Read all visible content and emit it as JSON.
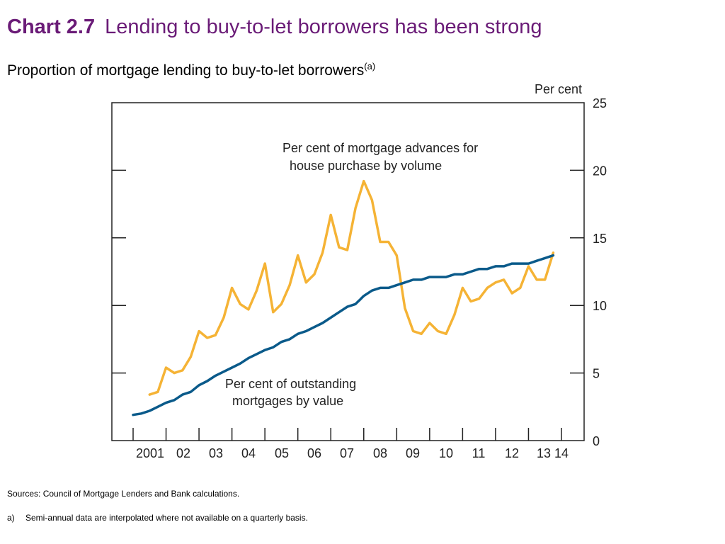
{
  "header": {
    "chart_number": "Chart 2.7",
    "title": "Lending to buy-to-let borrowers has been strong",
    "subtitle": "Proportion of mortgage lending to buy-to-let borrowers",
    "subtitle_note": "(a)"
  },
  "chart_data": {
    "type": "line",
    "y_unit": "Per cent",
    "ylim": [
      0,
      25
    ],
    "y_ticks": [
      "0",
      "5",
      "10",
      "15",
      "20",
      "25"
    ],
    "x_tick_labels": [
      "2001",
      "02",
      "03",
      "04",
      "05",
      "06",
      "07",
      "08",
      "09",
      "10",
      "11",
      "12",
      "13",
      "14"
    ],
    "xlim": [
      2001.0,
      2014.0
    ],
    "grid": false,
    "series": [
      {
        "name": "Per cent of mortgage advances for house purchase by volume",
        "label_lines": [
          "Per cent of mortgage advances for",
          "house purchase by volume"
        ],
        "color": "#f5b335",
        "x": [
          2001.5,
          2001.75,
          2002.0,
          2002.25,
          2002.5,
          2002.75,
          2003.0,
          2003.25,
          2003.5,
          2003.75,
          2004.0,
          2004.25,
          2004.5,
          2004.75,
          2005.0,
          2005.25,
          2005.5,
          2005.75,
          2006.0,
          2006.25,
          2006.5,
          2006.75,
          2007.0,
          2007.25,
          2007.5,
          2007.75,
          2008.0,
          2008.25,
          2008.5,
          2008.75,
          2009.0,
          2009.25,
          2009.5,
          2009.75,
          2010.0,
          2010.25,
          2010.5,
          2010.75,
          2011.0,
          2011.25,
          2011.5,
          2011.75,
          2012.0,
          2012.25,
          2012.5,
          2012.75,
          2013.0,
          2013.25,
          2013.5,
          2013.75
        ],
        "values": [
          3.4,
          3.6,
          5.4,
          5.0,
          5.2,
          6.2,
          8.1,
          7.6,
          7.8,
          9.1,
          11.3,
          10.1,
          9.7,
          11.1,
          13.1,
          9.5,
          10.1,
          11.5,
          13.7,
          11.7,
          12.3,
          13.9,
          16.7,
          14.3,
          14.1,
          17.2,
          19.2,
          17.8,
          14.7,
          14.7,
          13.7,
          9.8,
          8.1,
          7.9,
          8.7,
          8.1,
          7.9,
          9.3,
          11.3,
          10.3,
          10.5,
          11.3,
          11.7,
          11.9,
          10.9,
          11.3,
          12.9,
          11.9,
          11.9,
          13.9
        ]
      },
      {
        "name": "Per cent of outstanding mortgages by value",
        "label_lines": [
          "Per cent of outstanding",
          "mortgages by value"
        ],
        "color": "#0a5a8a",
        "x": [
          2001.0,
          2001.25,
          2001.5,
          2001.75,
          2002.0,
          2002.25,
          2002.5,
          2002.75,
          2003.0,
          2003.25,
          2003.5,
          2003.75,
          2004.0,
          2004.25,
          2004.5,
          2004.75,
          2005.0,
          2005.25,
          2005.5,
          2005.75,
          2006.0,
          2006.25,
          2006.5,
          2006.75,
          2007.0,
          2007.25,
          2007.5,
          2007.75,
          2008.0,
          2008.25,
          2008.5,
          2008.75,
          2009.0,
          2009.25,
          2009.5,
          2009.75,
          2010.0,
          2010.25,
          2010.5,
          2010.75,
          2011.0,
          2011.25,
          2011.5,
          2011.75,
          2012.0,
          2012.25,
          2012.5,
          2012.75,
          2013.0,
          2013.25,
          2013.5,
          2013.75
        ],
        "values": [
          1.9,
          2.0,
          2.2,
          2.5,
          2.8,
          3.0,
          3.4,
          3.6,
          4.1,
          4.4,
          4.8,
          5.1,
          5.4,
          5.7,
          6.1,
          6.4,
          6.7,
          6.9,
          7.3,
          7.5,
          7.9,
          8.1,
          8.4,
          8.7,
          9.1,
          9.5,
          9.9,
          10.1,
          10.7,
          11.1,
          11.3,
          11.3,
          11.5,
          11.7,
          11.9,
          11.9,
          12.1,
          12.1,
          12.1,
          12.3,
          12.3,
          12.5,
          12.7,
          12.7,
          12.9,
          12.9,
          13.1,
          13.1,
          13.1,
          13.3,
          13.5,
          13.7
        ]
      }
    ]
  },
  "footer": {
    "sources": "Sources: Council of Mortgage Lenders and Bank calculations.",
    "footnote_marker": "a)",
    "footnote_text": "Semi-annual data are interpolated where not available on a quarterly basis."
  }
}
